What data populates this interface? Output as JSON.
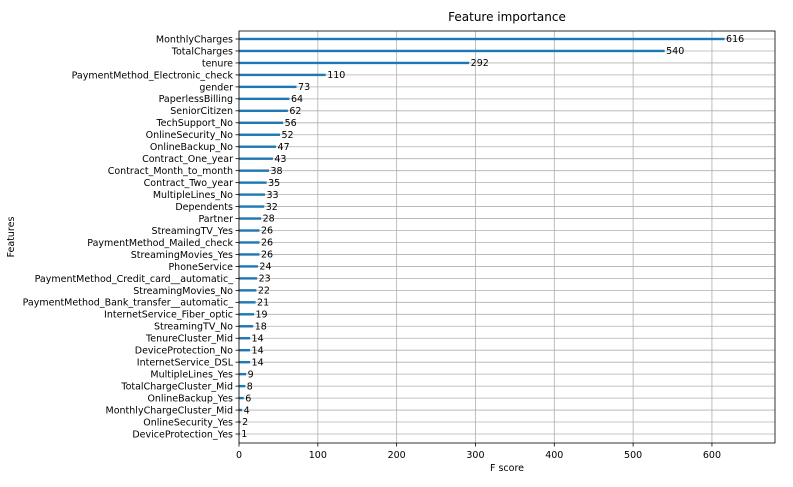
{
  "chart_data": {
    "type": "bar",
    "orientation": "horizontal",
    "title": "Feature importance",
    "xlabel": "F score",
    "ylabel": "Features",
    "xlim": [
      0,
      680
    ],
    "xticks": [
      0,
      100,
      200,
      300,
      400,
      500,
      600
    ],
    "grid": true,
    "bar_color": "#1f77b4",
    "categories": [
      "MonthlyCharges",
      "TotalCharges",
      "tenure",
      "PaymentMethod_Electronic_check",
      "gender",
      "PaperlessBilling",
      "SeniorCitizen",
      "TechSupport_No",
      "OnlineSecurity_No",
      "OnlineBackup_No",
      "Contract_One_year",
      "Contract_Month_to_month",
      "Contract_Two_year",
      "MultipleLines_No",
      "Dependents",
      "Partner",
      "StreamingTV_Yes",
      "PaymentMethod_Mailed_check",
      "StreamingMovies_Yes",
      "PhoneService",
      "PaymentMethod_Credit_card__automatic_",
      "StreamingMovies_No",
      "PaymentMethod_Bank_transfer__automatic_",
      "InternetService_Fiber_optic",
      "StreamingTV_No",
      "TenureCluster_Mid",
      "DeviceProtection_No",
      "InternetService_DSL",
      "MultipleLines_Yes",
      "TotalChargeCluster_Mid",
      "OnlineBackup_Yes",
      "MonthlyChargeCluster_Mid",
      "OnlineSecurity_Yes",
      "DeviceProtection_Yes"
    ],
    "values": [
      616,
      540,
      292,
      110,
      73,
      64,
      62,
      56,
      52,
      47,
      43,
      38,
      35,
      33,
      32,
      28,
      26,
      26,
      26,
      24,
      23,
      22,
      21,
      19,
      18,
      14,
      14,
      14,
      9,
      8,
      6,
      4,
      2,
      1
    ]
  }
}
